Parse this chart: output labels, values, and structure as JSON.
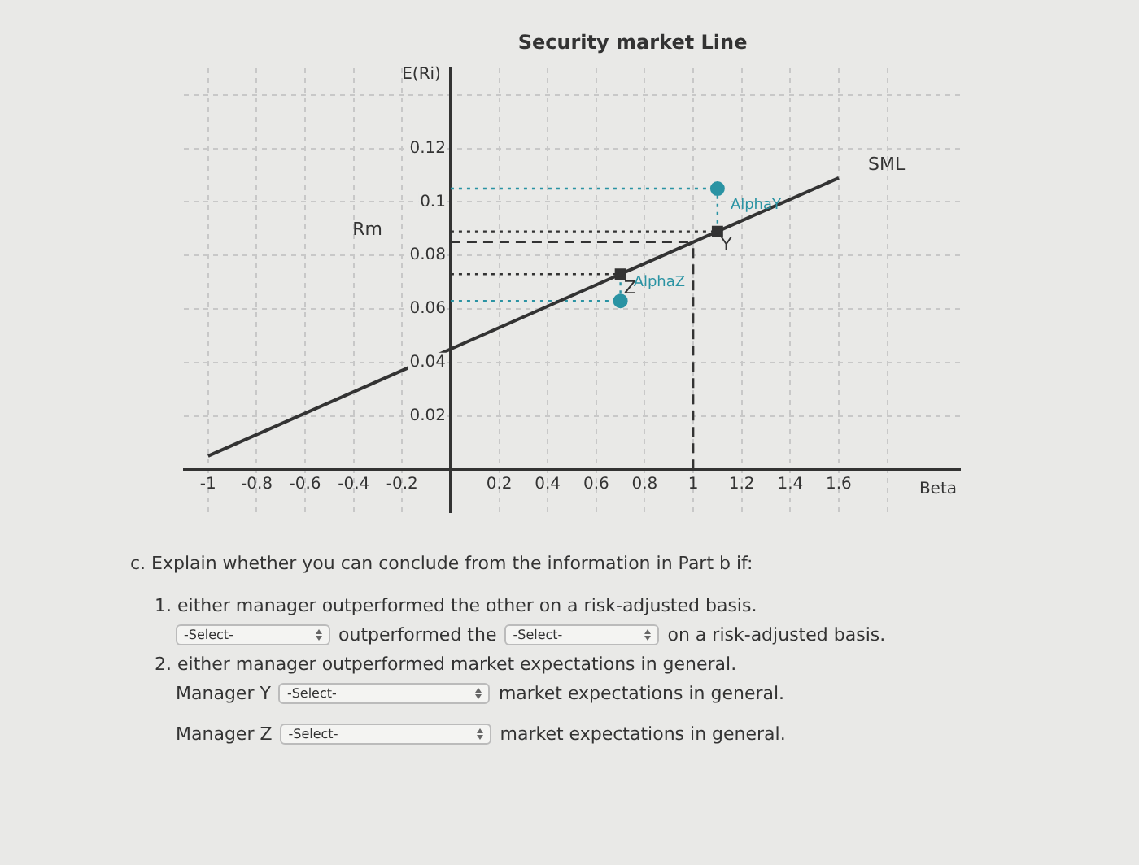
{
  "chart_data": {
    "type": "line",
    "title": "Security market Line",
    "xlabel": "Beta",
    "ylabel": "E(Ri)",
    "xlim": [
      -1.1,
      2.1
    ],
    "ylim": [
      -0.016,
      0.15
    ],
    "xticks": [
      -1,
      -0.8,
      -0.6,
      -0.4,
      -0.2,
      0.2,
      0.4,
      0.6,
      0.8,
      1,
      1.2,
      1.4,
      1.6,
      {
        "value": 1.8,
        "label": null
      }
    ],
    "yticks": [
      0.02,
      0.04,
      0.06,
      0.08,
      0.1,
      0.12,
      {
        "value": 0.14,
        "label": null
      }
    ],
    "grid": true,
    "legend": false,
    "series": [
      {
        "type": "line",
        "x": [
          -1,
          1.6
        ],
        "values": [
          0.005,
          0.109
        ],
        "color": "#333333",
        "marker": "none",
        "line_style": "solid"
      },
      {
        "type": "scatter",
        "x": [
          1.1,
          0.7
        ],
        "values": [
          0.089,
          0.073
        ],
        "color": "#333333",
        "marker": "square"
      },
      {
        "type": "scatter",
        "x": [
          1.1,
          0.7
        ],
        "values": [
          0.105,
          0.063
        ],
        "color": "#2a93a3",
        "marker": "circle"
      },
      {
        "type": "line",
        "x": [
          0,
          1.1
        ],
        "values": [
          0.105,
          0.105
        ],
        "color": "#2a93a3",
        "marker": "none",
        "line_style": "dotted"
      },
      {
        "type": "line",
        "x": [
          0,
          1.1
        ],
        "values": [
          0.089,
          0.089
        ],
        "color": "#333333",
        "marker": "none",
        "line_style": "dotted"
      },
      {
        "type": "line",
        "x": [
          0,
          0.7
        ],
        "values": [
          0.073,
          0.073
        ],
        "color": "#333333",
        "marker": "none",
        "line_style": "dotted"
      },
      {
        "type": "line",
        "x": [
          0,
          0.7
        ],
        "values": [
          0.063,
          0.063
        ],
        "color": "#2a93a3",
        "marker": "none",
        "line_style": "dotted"
      },
      {
        "type": "line",
        "x": [
          1.1,
          1.1
        ],
        "values": [
          0.089,
          0.105
        ],
        "color": "#2a93a3",
        "marker": "none",
        "line_style": "dotted"
      },
      {
        "type": "line",
        "x": [
          0.7,
          0.7
        ],
        "values": [
          0.073,
          0.063
        ],
        "color": "#2a93a3",
        "marker": "none",
        "line_style": "dotted"
      }
    ],
    "ref_lines": [
      {
        "axis": "y",
        "value": 0.085,
        "label": "Rm",
        "color": "#333333",
        "line_style": "dashed"
      },
      {
        "axis": "x",
        "value": 1,
        "color": "#333333",
        "line_style": "dashed"
      }
    ],
    "annotations": [
      "SML",
      "Y",
      "Z",
      "AlphaY",
      "AlphaZ",
      "c. Explain whether you can conclude from the information in Part b if:",
      "1. either manager outperformed the other on a risk-adjusted basis.",
      "-Select-",
      "outperformed the",
      "-Select-",
      "on a risk-adjusted basis.",
      "2. either manager outperformed market expectations in general.",
      "Manager Y",
      "-Select-",
      "market expectations in general.",
      "Manager Z",
      "-Select-",
      "market expectations in general."
    ]
  }
}
